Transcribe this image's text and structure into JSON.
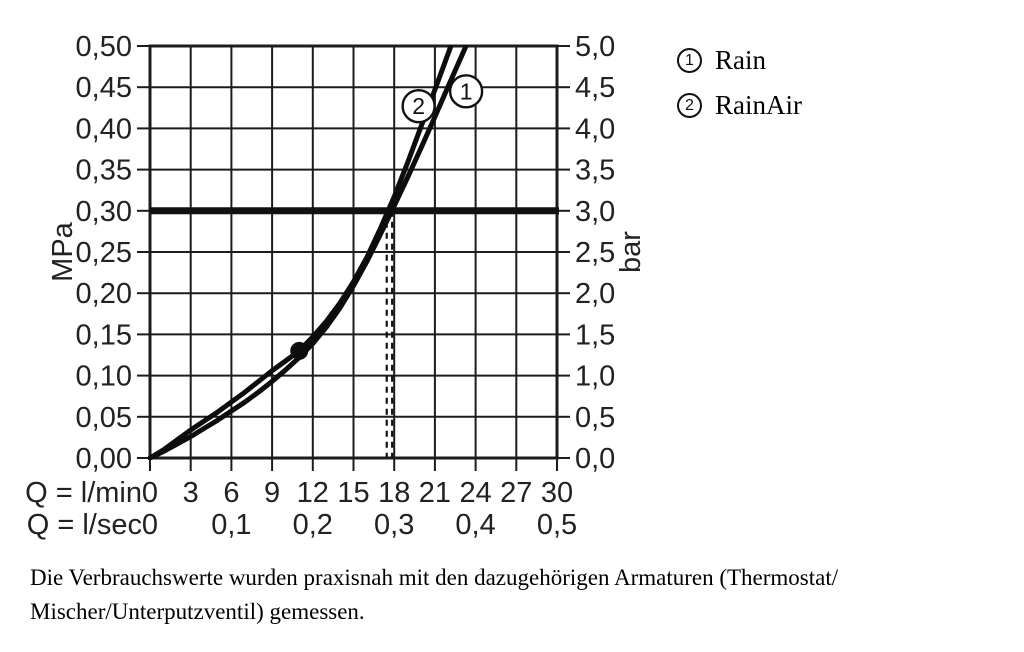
{
  "page": {
    "background": "#ffffff"
  },
  "legend": {
    "items": [
      {
        "marker": "1",
        "label": "Rain"
      },
      {
        "marker": "2",
        "label": "RainAir"
      }
    ]
  },
  "caption": {
    "lines": [
      "Die Verbrauchswerte wurden praxisnah mit den dazugehörigen Armaturen (Thermostat/",
      "Mischer/Unterputzventil) gemessen."
    ]
  },
  "chart_data": {
    "type": "line",
    "title": "",
    "grid": true,
    "legend_position": "right-top",
    "colors": {
      "grid": "#1c1c1c",
      "curve": "#0d0d0d",
      "text": "#222222",
      "reference": "#111111"
    },
    "x_axis": {
      "label_lmin": "Q = l/min",
      "ticks_lmin": [
        "0",
        "3",
        "6",
        "9",
        "12",
        "15",
        "18",
        "21",
        "24",
        "27",
        "30"
      ],
      "label_lsec": "Q = l/sec",
      "ticks_lsec": [
        "0",
        "0,1",
        "0,2",
        "0,3",
        "0,4",
        "0,5"
      ],
      "range_lmin": [
        0,
        30
      ],
      "range_lsec": [
        0,
        0.5
      ]
    },
    "y_axis_left": {
      "unit": "MPa",
      "ticks": [
        "0,00",
        "0,05",
        "0,10",
        "0,15",
        "0,20",
        "0,25",
        "0,30",
        "0,35",
        "0,40",
        "0,45",
        "0,50"
      ],
      "range": [
        0,
        0.5
      ]
    },
    "y_axis_right": {
      "unit": "bar",
      "ticks": [
        "0,0",
        "0,5",
        "1,0",
        "1,5",
        "2,0",
        "2,5",
        "3,0",
        "3,5",
        "4,0",
        "4,5",
        "5,0"
      ],
      "range": [
        0,
        5
      ]
    },
    "reference_line": {
      "mpa": 0.3,
      "bar": 3.0
    },
    "dashed_guides_lmin": [
      17.45,
      17.85
    ],
    "marker_dot": {
      "lmin": 11,
      "mpa": 0.13
    },
    "series": [
      {
        "id": "1",
        "name": "Rain",
        "badge_pos": [
          23.3,
          0.445
        ],
        "points": [
          [
            0,
            0
          ],
          [
            1,
            0.008
          ],
          [
            2,
            0.017
          ],
          [
            3,
            0.026
          ],
          [
            4,
            0.036
          ],
          [
            5,
            0.046
          ],
          [
            6,
            0.057
          ],
          [
            7,
            0.068
          ],
          [
            8,
            0.08
          ],
          [
            9,
            0.093
          ],
          [
            10,
            0.107
          ],
          [
            11,
            0.122
          ],
          [
            12,
            0.139
          ],
          [
            13,
            0.159
          ],
          [
            14,
            0.182
          ],
          [
            15,
            0.209
          ],
          [
            16,
            0.239
          ],
          [
            17,
            0.272
          ],
          [
            18,
            0.306
          ],
          [
            19,
            0.341
          ],
          [
            20,
            0.377
          ],
          [
            21,
            0.414
          ],
          [
            22,
            0.452
          ],
          [
            23,
            0.489
          ],
          [
            23.8,
            0.519
          ]
        ]
      },
      {
        "id": "2",
        "name": "RainAir",
        "badge_pos": [
          19.8,
          0.427
        ],
        "points": [
          [
            0,
            0
          ],
          [
            1,
            0.01
          ],
          [
            2,
            0.022
          ],
          [
            3,
            0.034
          ],
          [
            4,
            0.045
          ],
          [
            5,
            0.056
          ],
          [
            6,
            0.068
          ],
          [
            7,
            0.08
          ],
          [
            8,
            0.093
          ],
          [
            9,
            0.106
          ],
          [
            10,
            0.118
          ],
          [
            11,
            0.13
          ],
          [
            12,
            0.147
          ],
          [
            13,
            0.166
          ],
          [
            14,
            0.188
          ],
          [
            15,
            0.214
          ],
          [
            16,
            0.244
          ],
          [
            17,
            0.279
          ],
          [
            18,
            0.317
          ],
          [
            19,
            0.359
          ],
          [
            20,
            0.403
          ],
          [
            21,
            0.447
          ],
          [
            22,
            0.492
          ],
          [
            22.7,
            0.523
          ]
        ]
      }
    ]
  }
}
